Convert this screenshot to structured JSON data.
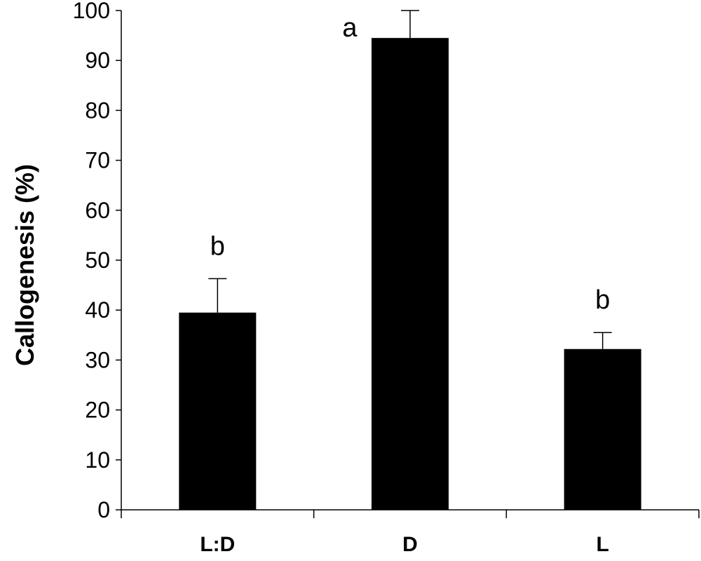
{
  "chart_data": {
    "type": "bar",
    "title": "",
    "xlabel": "",
    "ylabel": "Callogenesis (%)",
    "categories": [
      "L:D",
      "D",
      "L"
    ],
    "values": [
      39.5,
      94.5,
      32.2
    ],
    "errors": [
      6.8,
      5.5,
      3.3
    ],
    "significance_labels": [
      "b",
      "a",
      "b"
    ],
    "ylim": [
      0,
      100
    ],
    "yticks": [
      0,
      10,
      20,
      30,
      40,
      50,
      60,
      70,
      80,
      90,
      100
    ],
    "ytick_labels": [
      "0",
      "10",
      "20",
      "30",
      "40",
      "50",
      "60",
      "70",
      "80",
      "90",
      "100"
    ],
    "grid": false,
    "bar_color": "#000000"
  }
}
